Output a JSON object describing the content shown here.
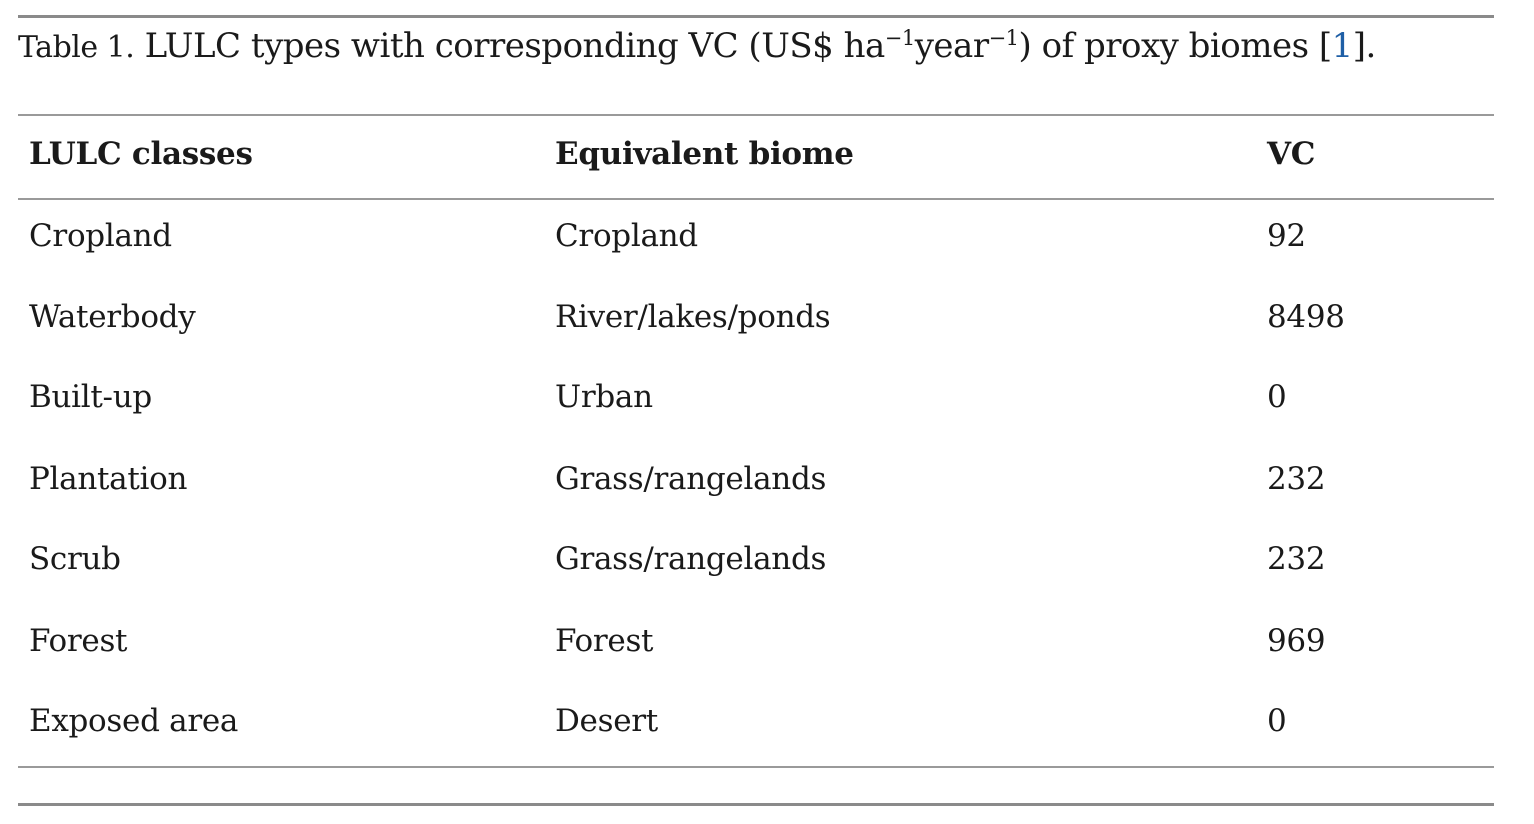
{
  "caption": {
    "label": "Table 1.",
    "text_before": " LULC types with corresponding VC (US$ ha",
    "sup1": "−1",
    "text_mid": "year",
    "sup2": "−1",
    "text_after": ") of proxy biomes [",
    "ref": "1",
    "text_end": "]."
  },
  "table": {
    "headers": [
      "LULC classes",
      "Equivalent biome",
      "VC"
    ],
    "rows": [
      [
        "Cropland",
        "Cropland",
        "92"
      ],
      [
        "Waterbody",
        "River/lakes/ponds",
        "8498"
      ],
      [
        "Built-up",
        "Urban",
        "0"
      ],
      [
        "Plantation",
        "Grass/rangelands",
        "232"
      ],
      [
        "Scrub",
        "Grass/rangelands",
        "232"
      ],
      [
        "Forest",
        "Forest",
        "969"
      ],
      [
        "Exposed area",
        "Desert",
        "0"
      ]
    ]
  }
}
